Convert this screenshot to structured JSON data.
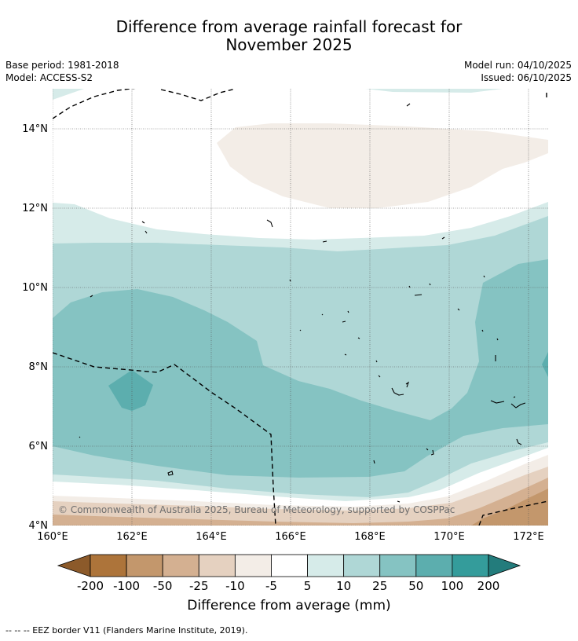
{
  "title": {
    "line1": "Difference from average rainfall forecast for",
    "line2": "November 2025"
  },
  "meta": {
    "base_period": "Base period: 1981-2018",
    "model": "Model: ACCESS-S2",
    "model_run": "Model run: 04/10/2025",
    "issued": "Issued: 06/10/2025"
  },
  "map": {
    "lon_labels": [
      "160°E",
      "162°E",
      "164°E",
      "166°E",
      "168°E",
      "170°E",
      "172°E"
    ],
    "lat_labels": [
      "4°N",
      "6°N",
      "8°N",
      "10°N",
      "12°N",
      "14°N"
    ],
    "lon_range": [
      160,
      172.5
    ],
    "lat_range": [
      4,
      15
    ],
    "copyright": "© Commonwealth of Australia 2025, Bureau of Meteorology, supported by COSPPac"
  },
  "colorbar": {
    "title": "Difference from average (mm)",
    "tick_labels": [
      "-200",
      "-100",
      "-50",
      "-25",
      "-10",
      "-5",
      "5",
      "10",
      "25",
      "50",
      "100",
      "200"
    ],
    "low_extend_color": "#8c5a2a",
    "high_extend_color": "#237c7c",
    "colors": [
      "#ad743a",
      "#c3976c",
      "#d4b091",
      "#e5d1c0",
      "#f3ede7",
      "#ffffff",
      "#d6ebe9",
      "#afd7d6",
      "#85c3c2",
      "#5caeae",
      "#349c9b"
    ]
  },
  "palette": {
    "tan_lightest": "#f3ede7",
    "tan_light": "#e5d1c0",
    "tan_mid": "#d4b091",
    "tan_dark": "#c3976c",
    "teal_lightest": "#d6ebe9",
    "teal_light": "#afd7d6",
    "teal_mid": "#85c3c2",
    "teal_dark": "#5caeae"
  },
  "footnote": "--  --  -- EEZ border V11 (Flanders Marine Institute, 2019)."
}
